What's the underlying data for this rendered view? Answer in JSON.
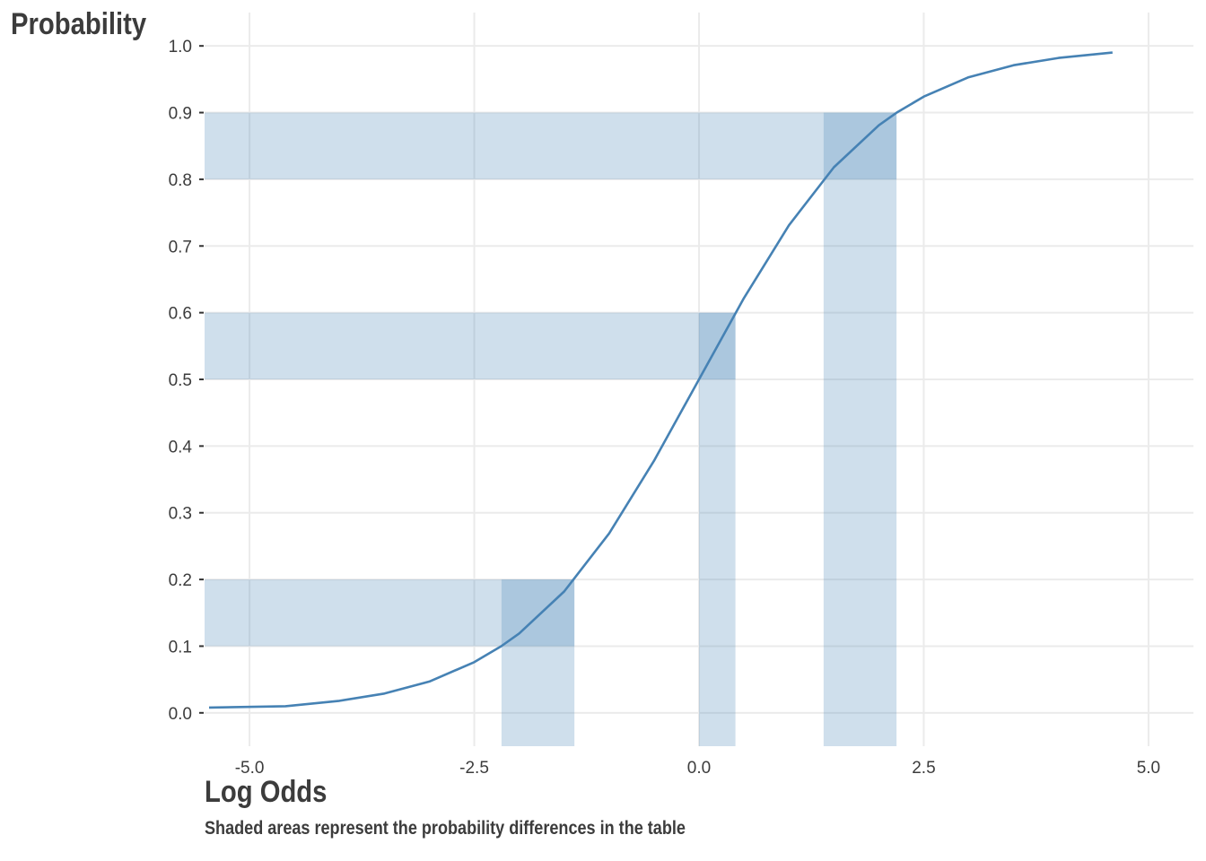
{
  "chart_data": {
    "type": "line",
    "ylabel": "Probability",
    "xlabel": "Log Odds",
    "caption": "Shaded areas represent the probability differences in the table",
    "xlim": [
      -5.5,
      5.5
    ],
    "ylim": [
      -0.05,
      1.05
    ],
    "x_ticks": [
      -5.0,
      -2.5,
      0.0,
      2.5,
      5.0
    ],
    "x_tick_labels": [
      "-5.0",
      "-2.5",
      "0.0",
      "2.5",
      "5.0"
    ],
    "y_ticks": [
      0.0,
      0.1,
      0.2,
      0.3,
      0.4,
      0.5,
      0.6,
      0.7,
      0.8,
      0.9,
      1.0
    ],
    "y_tick_labels": [
      "0.0",
      "0.1",
      "0.2",
      "0.3",
      "0.4",
      "0.5",
      "0.6",
      "0.7",
      "0.8",
      "0.9",
      "1.0"
    ],
    "grid": true,
    "line_color": "#4682b4",
    "shade_color": "#4682b4",
    "curve": {
      "function": "logistic",
      "x": [
        -5.45,
        -4.6,
        -4.0,
        -3.5,
        -3.0,
        -2.5,
        -2.2,
        -2.0,
        -1.5,
        -1.0,
        -0.5,
        0.0,
        0.5,
        1.0,
        1.5,
        2.0,
        2.2,
        2.5,
        3.0,
        3.5,
        4.0,
        4.6
      ],
      "y": [
        0.008,
        0.01,
        0.018,
        0.029,
        0.047,
        0.076,
        0.1,
        0.119,
        0.182,
        0.269,
        0.378,
        0.5,
        0.622,
        0.731,
        0.818,
        0.881,
        0.9,
        0.924,
        0.953,
        0.971,
        0.982,
        0.99
      ]
    },
    "horizontal_bands": [
      {
        "y_from": 0.1,
        "y_to": 0.2
      },
      {
        "y_from": 0.5,
        "y_to": 0.6
      },
      {
        "y_from": 0.8,
        "y_to": 0.9
      }
    ],
    "vertical_bands": [
      {
        "x_from": -2.197,
        "x_to": -1.386
      },
      {
        "x_from": 0.0,
        "x_to": 0.405
      },
      {
        "x_from": 1.386,
        "x_to": 2.197
      }
    ]
  }
}
